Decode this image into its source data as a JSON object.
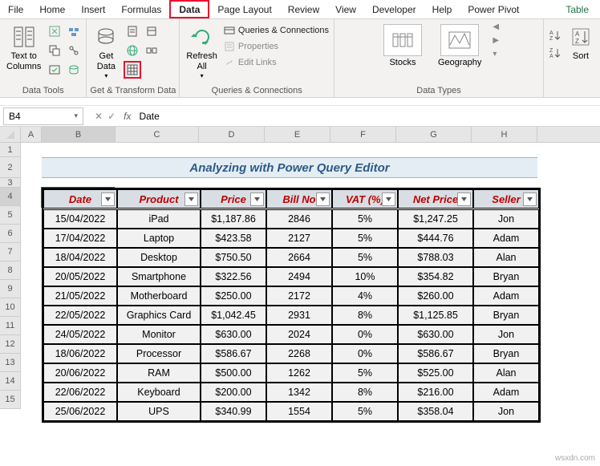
{
  "tabs": [
    "File",
    "Home",
    "Insert",
    "Formulas",
    "Data",
    "Page Layout",
    "Review",
    "View",
    "Developer",
    "Help",
    "Power Pivot"
  ],
  "active_tab": "Data",
  "context_tab": "Table",
  "ribbon": {
    "group1_label": "Data Tools",
    "text_to_columns": "Text to\nColumns",
    "group2_label": "Get & Transform Data",
    "get_data": "Get\nData",
    "group3_label": "Queries & Connections",
    "refresh_all": "Refresh\nAll",
    "queries_conn": "Queries & Connections",
    "properties": "Properties",
    "edit_links": "Edit Links",
    "group4_label": "Data Types",
    "stocks": "Stocks",
    "geography": "Geography",
    "sort": "Sort"
  },
  "namebox": "B4",
  "formula": "Date",
  "columns": [
    "A",
    "B",
    "C",
    "D",
    "E",
    "F",
    "G",
    "H"
  ],
  "title": "Analyzing with Power Query Editor",
  "headers": [
    "Date",
    "Product",
    "Price",
    "Bill No",
    "VAT (%)",
    "Net Price",
    "Seller"
  ],
  "rows": [
    [
      "15/04/2022",
      "iPad",
      "$1,187.86",
      "2846",
      "5%",
      "$1,247.25",
      "Jon"
    ],
    [
      "17/04/2022",
      "Laptop",
      "$423.58",
      "2127",
      "5%",
      "$444.76",
      "Adam"
    ],
    [
      "18/04/2022",
      "Desktop",
      "$750.50",
      "2664",
      "5%",
      "$788.03",
      "Alan"
    ],
    [
      "20/05/2022",
      "Smartphone",
      "$322.56",
      "2494",
      "10%",
      "$354.82",
      "Bryan"
    ],
    [
      "21/05/2022",
      "Motherboard",
      "$250.00",
      "2172",
      "4%",
      "$260.00",
      "Adam"
    ],
    [
      "22/05/2022",
      "Graphics Card",
      "$1,042.45",
      "2931",
      "8%",
      "$1,125.85",
      "Bryan"
    ],
    [
      "24/05/2022",
      "Monitor",
      "$630.00",
      "2024",
      "0%",
      "$630.00",
      "Jon"
    ],
    [
      "18/06/2022",
      "Processor",
      "$586.67",
      "2268",
      "0%",
      "$586.67",
      "Bryan"
    ],
    [
      "20/06/2022",
      "RAM",
      "$500.00",
      "1262",
      "5%",
      "$525.00",
      "Alan"
    ],
    [
      "22/06/2022",
      "Keyboard",
      "$200.00",
      "1342",
      "8%",
      "$216.00",
      "Adam"
    ],
    [
      "25/06/2022",
      "UPS",
      "$340.99",
      "1554",
      "5%",
      "$358.04",
      "Jon"
    ]
  ],
  "watermark": "wsxdn.com",
  "colors": {
    "highlight": "#e8112d",
    "header_text": "#bf0000",
    "banner_bg": "#e4edf4",
    "banner_text": "#2e5a86",
    "cell_bg": "#f1f1f1"
  }
}
